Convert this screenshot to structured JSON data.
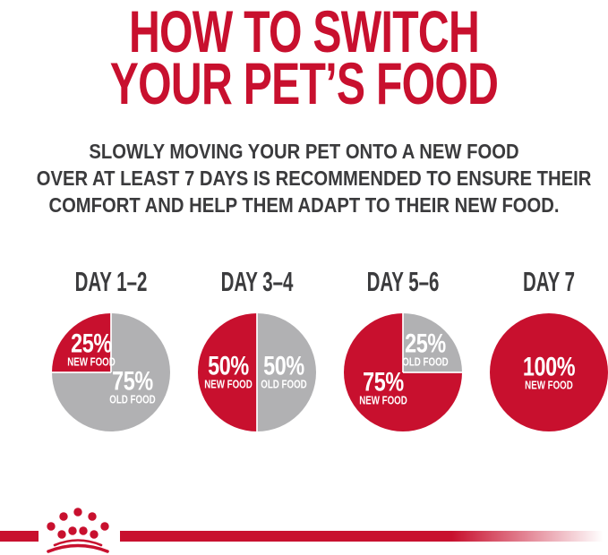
{
  "header": {
    "title_line1": "HOW TO SWITCH",
    "title_line2": "YOUR PET’S FOOD",
    "subtitle_line1": "SLOWLY MOVING YOUR PET ONTO A NEW FOOD",
    "subtitle_line2": "OVER AT LEAST 7 DAYS IS RECOMMENDED TO ENSURE THEIR",
    "subtitle_line3": "COMFORT AND HELP THEM ADAPT TO THEIR NEW FOOD."
  },
  "colors": {
    "brand_red": "#C8102E",
    "old_food_gray": "#B1B1B3",
    "heading_text": "#3B3B3D",
    "pie_label_text": "#FFFFFF"
  },
  "chart_data": {
    "type": "pie",
    "title": "HOW TO SWITCH YOUR PET’S FOOD",
    "legend": [
      "NEW FOOD",
      "OLD FOOD"
    ],
    "legend_position": "inside-slices",
    "charts": [
      {
        "label": "DAY 1–2",
        "slices": [
          {
            "name": "NEW FOOD",
            "value_pct": 25,
            "value_label": "25%",
            "color": "#C8102E",
            "label_pos": "top-left"
          },
          {
            "name": "OLD FOOD",
            "value_pct": 75,
            "value_label": "75%",
            "color": "#B1B1B3",
            "label_pos": "bottom-right"
          }
        ]
      },
      {
        "label": "DAY 3–4",
        "slices": [
          {
            "name": "NEW FOOD",
            "value_pct": 50,
            "value_label": "50%",
            "color": "#C8102E",
            "label_pos": "center-left"
          },
          {
            "name": "OLD FOOD",
            "value_pct": 50,
            "value_label": "50%",
            "color": "#B1B1B3",
            "label_pos": "center-right"
          }
        ]
      },
      {
        "label": "DAY 5–6",
        "slices": [
          {
            "name": "NEW FOOD",
            "value_pct": 75,
            "value_label": "75%",
            "color": "#C8102E",
            "label_pos": "bottom-left"
          },
          {
            "name": "OLD FOOD",
            "value_pct": 25,
            "value_label": "25%",
            "color": "#B1B1B3",
            "label_pos": "top-right"
          }
        ]
      },
      {
        "label": "DAY 7",
        "slices": [
          {
            "name": "NEW FOOD",
            "value_pct": 100,
            "value_label": "100%",
            "color": "#C8102E",
            "label_pos": "center"
          }
        ]
      }
    ]
  },
  "footer": {
    "logo_name": "royal-canin-crown-logo"
  }
}
